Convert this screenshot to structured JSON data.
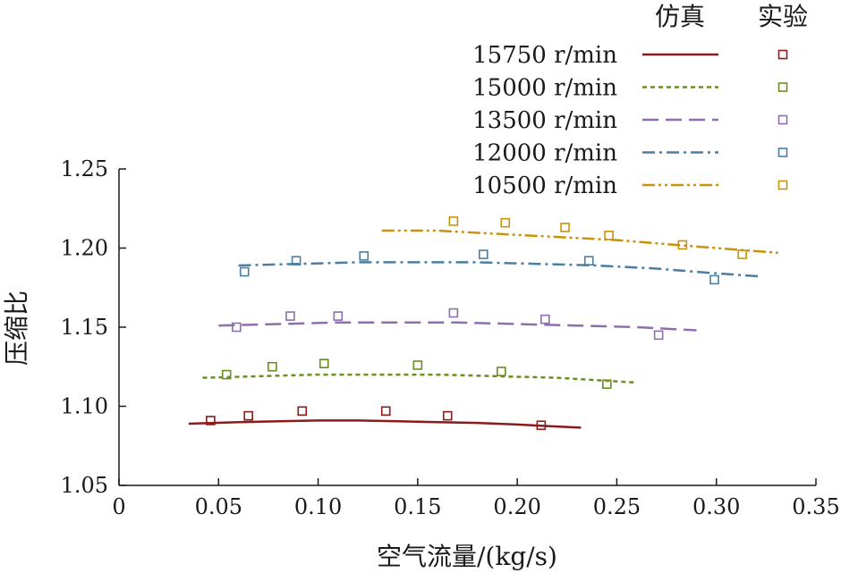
{
  "chart_data": {
    "type": "line",
    "title": "",
    "xlabel": "空气流量/(kg/s)",
    "ylabel": "压缩比",
    "xlim": [
      0,
      0.35
    ],
    "ylim": [
      1.05,
      1.25
    ],
    "x_ticks": [
      "0",
      "0.05",
      "0.10",
      "0.15",
      "0.20",
      "0.25",
      "0.30",
      "0.35"
    ],
    "y_ticks": [
      "1.05",
      "1.10",
      "1.15",
      "1.20",
      "1.25"
    ],
    "legend": {
      "position": "top-right",
      "header_sim": "仿真",
      "header_exp": "实验"
    },
    "series": [
      {
        "name": "15750 r/min",
        "color": "#8b1a1a",
        "dash": "solid",
        "sim_x": [
          0.035,
          0.06,
          0.08,
          0.1,
          0.12,
          0.14,
          0.16,
          0.18,
          0.2,
          0.215,
          0.232
        ],
        "sim_y": [
          1.089,
          1.09,
          1.0905,
          1.091,
          1.091,
          1.0905,
          1.09,
          1.0895,
          1.0885,
          1.0875,
          1.0865
        ],
        "exp_x": [
          0.046,
          0.065,
          0.092,
          0.134,
          0.165,
          0.212
        ],
        "exp_y": [
          1.091,
          1.094,
          1.097,
          1.097,
          1.094,
          1.088
        ]
      },
      {
        "name": "15000 r/min",
        "color": "#6b8e23",
        "dash": "short-dash",
        "sim_x": [
          0.042,
          0.07,
          0.1,
          0.13,
          0.16,
          0.19,
          0.22,
          0.26
        ],
        "sim_y": [
          1.118,
          1.119,
          1.12,
          1.12,
          1.12,
          1.119,
          1.118,
          1.115
        ],
        "exp_x": [
          0.054,
          0.077,
          0.103,
          0.15,
          0.192,
          0.245
        ],
        "exp_y": [
          1.12,
          1.125,
          1.127,
          1.126,
          1.122,
          1.114
        ]
      },
      {
        "name": "13500 r/min",
        "color": "#8e6fae",
        "dash": "long-dash",
        "sim_x": [
          0.05,
          0.08,
          0.11,
          0.14,
          0.17,
          0.2,
          0.23,
          0.26,
          0.29
        ],
        "sim_y": [
          1.151,
          1.152,
          1.153,
          1.153,
          1.153,
          1.152,
          1.151,
          1.15,
          1.148
        ],
        "exp_x": [
          0.059,
          0.086,
          0.11,
          0.168,
          0.214,
          0.271
        ],
        "exp_y": [
          1.15,
          1.157,
          1.157,
          1.159,
          1.155,
          1.145
        ]
      },
      {
        "name": "12000 r/min",
        "color": "#4a7ea3",
        "dash": "dash-dot",
        "sim_x": [
          0.06,
          0.09,
          0.12,
          0.15,
          0.18,
          0.21,
          0.24,
          0.27,
          0.3,
          0.323
        ],
        "sim_y": [
          1.189,
          1.19,
          1.191,
          1.191,
          1.191,
          1.19,
          1.189,
          1.187,
          1.184,
          1.182
        ],
        "exp_x": [
          0.063,
          0.089,
          0.123,
          0.183,
          0.236,
          0.299
        ],
        "exp_y": [
          1.185,
          1.192,
          1.195,
          1.196,
          1.192,
          1.18
        ]
      },
      {
        "name": "10500 r/min",
        "color": "#c9920a",
        "dash": "dash-dot-dot",
        "sim_x": [
          0.132,
          0.16,
          0.19,
          0.22,
          0.25,
          0.28,
          0.31,
          0.331
        ],
        "sim_y": [
          1.211,
          1.211,
          1.209,
          1.207,
          1.205,
          1.202,
          1.199,
          1.197
        ],
        "exp_x": [
          0.168,
          0.194,
          0.224,
          0.246,
          0.283,
          0.313
        ],
        "exp_y": [
          1.217,
          1.216,
          1.213,
          1.208,
          1.202,
          1.196
        ]
      }
    ]
  }
}
